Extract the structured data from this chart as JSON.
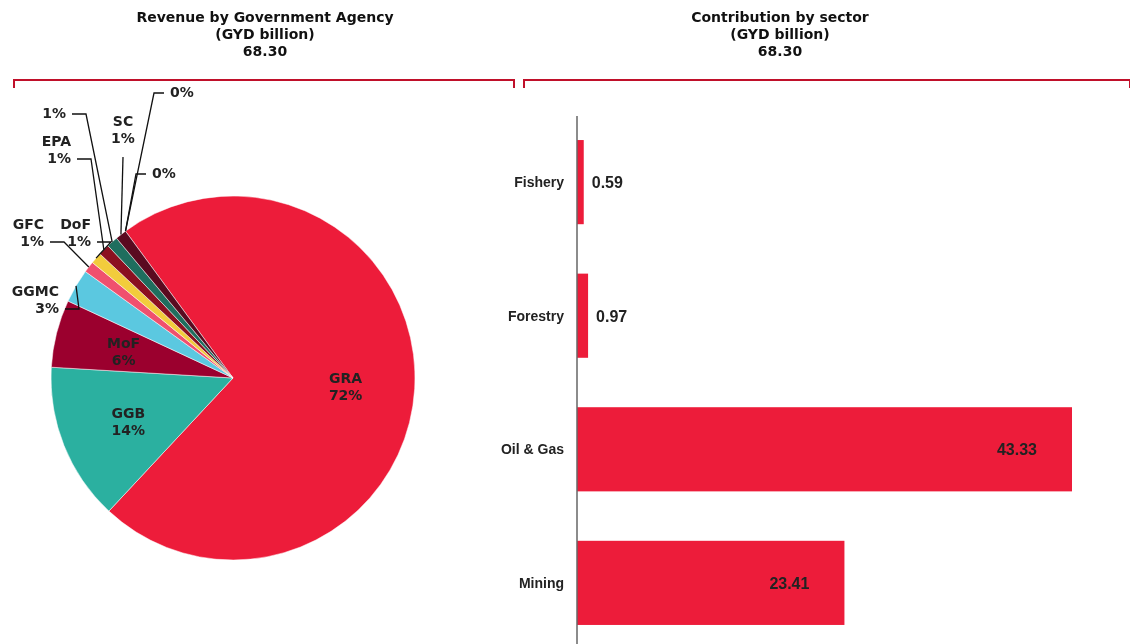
{
  "chart_data": [
    {
      "type": "pie",
      "title": "Revenue by Government Agency\n(GYD billion)\n68.30",
      "categories": [
        "GRA",
        "GGB",
        "MoF",
        "GGMC",
        "GFC",
        "DoF",
        "EPA",
        null,
        "SC",
        null,
        null
      ],
      "values": [
        72,
        14,
        6,
        3,
        1,
        1,
        1,
        1,
        1,
        0,
        0
      ],
      "value_labels": [
        "72%",
        "14%",
        "6%",
        "3%",
        "1%",
        "1%",
        "1%",
        "1%",
        "1%",
        "0%",
        "0%"
      ],
      "colors": [
        "#ed1c3a",
        "#2bb0a0",
        "#9b002e",
        "#5bc8e0",
        "#f0506e",
        "#f2cc3c",
        "#8b1020",
        "#1f6e5e",
        "#5a0a20",
        "#1f3a5a",
        "#4a8ac0"
      ]
    },
    {
      "type": "bar",
      "orientation": "horizontal",
      "title": "Contribution by sector\n(GYD billion)\n68.30",
      "categories": [
        "Fishery",
        "Forestry",
        "Oil & Gas",
        "Mining"
      ],
      "values": [
        0.59,
        0.97,
        43.33,
        23.41
      ],
      "color": "#ed1c3a",
      "data_labels": true
    }
  ]
}
